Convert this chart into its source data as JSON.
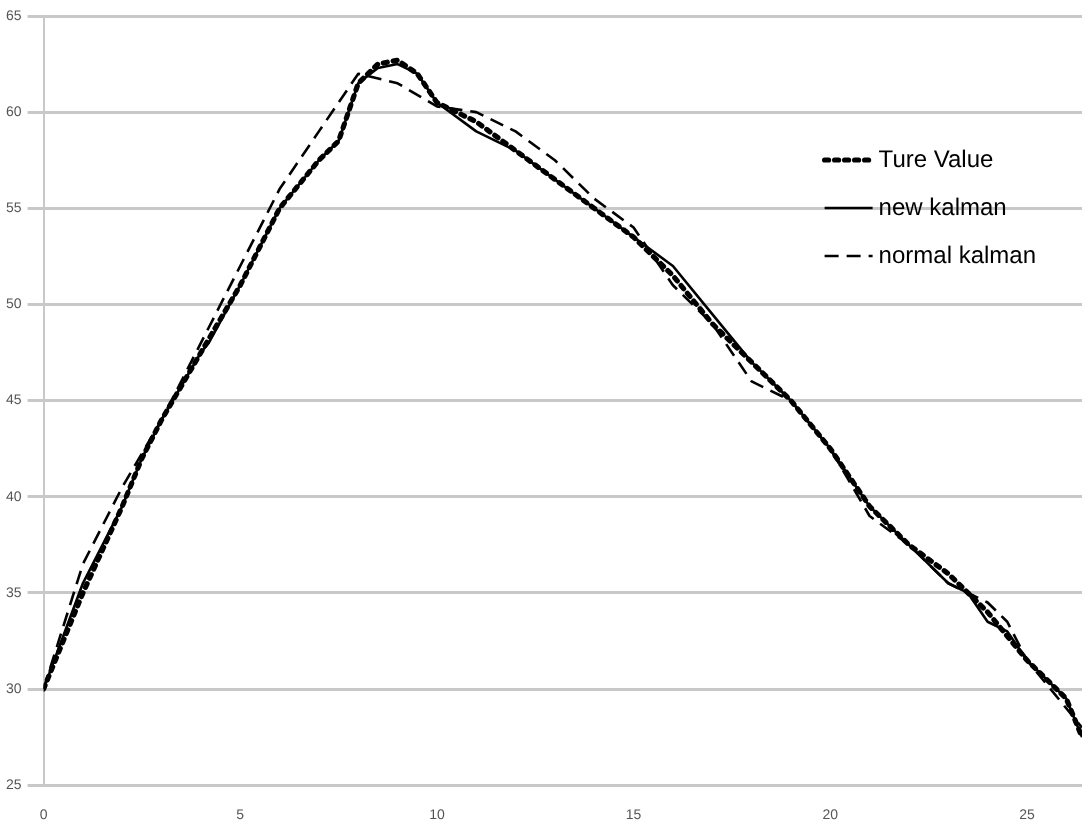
{
  "chart_data": {
    "type": "line",
    "xlim": [
      0,
      26.4
    ],
    "xticks": [
      0,
      5,
      10,
      15,
      20,
      25
    ],
    "ylim": [
      25,
      65
    ],
    "yticks": [
      25,
      30,
      35,
      40,
      45,
      50,
      55,
      60,
      65
    ],
    "grid": "y",
    "legend": "top right",
    "marker": "none",
    "series": [
      {
        "name": "Ture Value",
        "color": "#000000",
        "line_style": "dotted",
        "x": [
          0,
          1,
          2,
          2.5,
          3,
          4,
          5,
          6,
          7,
          7.5,
          8,
          8.5,
          9,
          9.5,
          10,
          11,
          12,
          13,
          14,
          15,
          16,
          17,
          18,
          19,
          20,
          21,
          22,
          23,
          24,
          25,
          26,
          26.4
        ],
        "values": [
          30,
          35,
          39.5,
          42,
          44,
          47.5,
          51,
          55,
          57.5,
          58.5,
          61.5,
          62.5,
          62.7,
          62,
          60.5,
          59.5,
          58,
          56.5,
          55,
          53.5,
          51.5,
          49,
          47,
          45,
          42.5,
          39.5,
          37.5,
          36,
          34,
          31.5,
          29.5,
          27.5
        ]
      },
      {
        "name": "new kalman",
        "color": "#000000",
        "line_style": "solid",
        "x": [
          0,
          1,
          2,
          2.5,
          3,
          4,
          4.2,
          5,
          6,
          7,
          7.5,
          8,
          8.5,
          9,
          9.5,
          10,
          11,
          12,
          13,
          14,
          15,
          16,
          17,
          18,
          19,
          20,
          21,
          22,
          23,
          23.5,
          24,
          24.5,
          25,
          26,
          26.4
        ],
        "values": [
          30,
          35.5,
          39.5,
          42,
          44,
          47.5,
          48,
          51,
          55,
          57.5,
          58.5,
          61.5,
          62.3,
          62.5,
          62,
          60.5,
          59,
          58,
          56.5,
          55,
          53.5,
          52,
          49.5,
          47,
          45,
          42.5,
          39.5,
          37.5,
          35.5,
          35,
          33.5,
          33,
          31.5,
          29.5,
          27.5
        ]
      },
      {
        "name": "normal kalman",
        "color": "#000000",
        "line_style": "dashed",
        "x": [
          0,
          1,
          2,
          3,
          4,
          5,
          6,
          7,
          8,
          9,
          10,
          11,
          12,
          13,
          14,
          15,
          16,
          17,
          18,
          19,
          20,
          21,
          22,
          23,
          24,
          24.5,
          25,
          26,
          26.4
        ],
        "values": [
          30,
          36.5,
          40.5,
          44,
          48,
          52,
          56,
          59,
          62,
          61.5,
          60.3,
          60,
          59,
          57.5,
          55.5,
          54,
          51,
          49,
          46,
          45,
          42.5,
          39,
          37.5,
          35.5,
          34.5,
          33.5,
          31.5,
          29,
          28
        ]
      }
    ]
  }
}
